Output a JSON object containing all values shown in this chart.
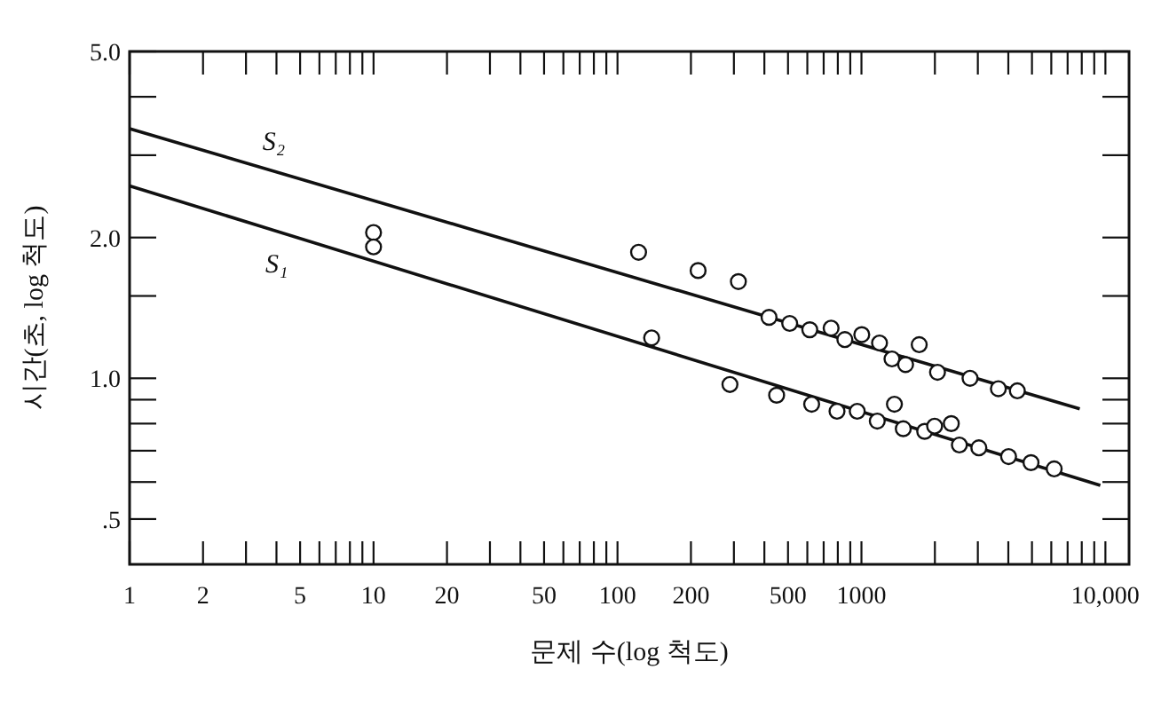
{
  "chart_data": {
    "type": "scatter",
    "xlabel": "문제 수(log 척도)",
    "ylabel": "시간(초, log 척도)",
    "log": "xy",
    "grid": false,
    "xlim": [
      1,
      12500
    ],
    "ylim": [
      0.4,
      5.0
    ],
    "xticks": [
      1,
      2,
      {
        "value": 3,
        "label": null
      },
      {
        "value": 4,
        "label": null
      },
      5,
      {
        "value": 6,
        "label": null
      },
      {
        "value": 7,
        "label": null
      },
      {
        "value": 8,
        "label": null
      },
      {
        "value": 9,
        "label": null
      },
      10,
      20,
      {
        "value": 30,
        "label": null
      },
      {
        "value": 40,
        "label": null
      },
      50,
      {
        "value": 60,
        "label": null
      },
      {
        "value": 70,
        "label": null
      },
      {
        "value": 80,
        "label": null
      },
      {
        "value": 90,
        "label": null
      },
      100,
      200,
      {
        "value": 300,
        "label": null
      },
      {
        "value": 400,
        "label": null
      },
      500,
      {
        "value": 600,
        "label": null
      },
      {
        "value": 700,
        "label": null
      },
      {
        "value": 800,
        "label": null
      },
      {
        "value": 900,
        "label": null
      },
      1000,
      {
        "value": 2000,
        "label": null
      },
      {
        "value": 3000,
        "label": null
      },
      {
        "value": 4000,
        "label": null
      },
      {
        "value": 5000,
        "label": null
      },
      {
        "value": 6000,
        "label": null
      },
      {
        "value": 7000,
        "label": null
      },
      {
        "value": 8000,
        "label": null
      },
      {
        "value": 9000,
        "label": null
      },
      {
        "value": 10000,
        "label": "10,000"
      }
    ],
    "yticks": [
      {
        "value": 0.5,
        "label": ".5"
      },
      {
        "value": 0.6,
        "label": null
      },
      {
        "value": 0.7,
        "label": null
      },
      {
        "value": 0.8,
        "label": null
      },
      {
        "value": 0.9,
        "label": null
      },
      {
        "value": 1.0,
        "label": "1.0"
      },
      {
        "value": 1.5,
        "label": null
      },
      {
        "value": 2.0,
        "label": "2.0"
      },
      {
        "value": 3,
        "label": null
      },
      {
        "value": 4,
        "label": null
      },
      {
        "value": 5.0,
        "label": "5.0"
      }
    ],
    "series": [
      {
        "type": "line",
        "name": "S₂",
        "color": "#111111",
        "x": [
          1,
          7850
        ],
        "values": [
          3.42,
          0.86
        ]
      },
      {
        "type": "line",
        "name": "S₁",
        "color": "#111111",
        "x": [
          1,
          9530
        ],
        "values": [
          2.58,
          0.59
        ]
      },
      {
        "marker": "circle",
        "color": "#111111",
        "x": [
          10,
          10,
          122,
          214,
          313,
          418,
          508,
          614,
          751,
          855,
          1003,
          1186,
          1725,
          1334,
          1517,
          2050,
          2787,
          3641,
          4355,
          138,
          289,
          449,
          625,
          794,
          961,
          1161,
          1365,
          1484,
          1816,
          1995,
          2335,
          2520,
          3029,
          4009,
          4955,
          6166
        ],
        "values": [
          2.05,
          1.91,
          1.86,
          1.7,
          1.61,
          1.35,
          1.31,
          1.27,
          1.28,
          1.21,
          1.24,
          1.19,
          1.18,
          1.1,
          1.07,
          1.03,
          1.0,
          0.95,
          0.94,
          1.22,
          0.97,
          0.92,
          0.88,
          0.85,
          0.85,
          0.81,
          0.88,
          0.78,
          0.77,
          0.79,
          0.8,
          0.72,
          0.71,
          0.68,
          0.66,
          0.64
        ]
      }
    ]
  }
}
